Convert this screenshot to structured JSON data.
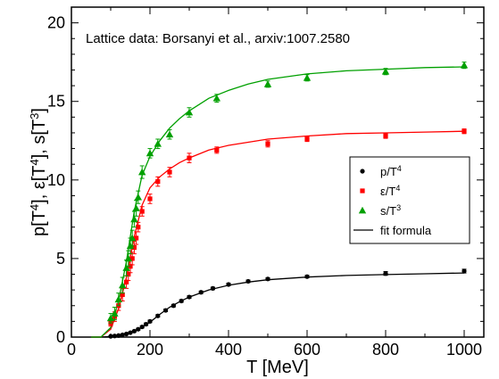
{
  "chart_data": {
    "type": "scatter",
    "annotation": "Lattice data: Borsanyi  et al., arxiv:1007.2580",
    "xlabel": "T [MeV]",
    "ylabel": "p[T4],  ε[T4], s[T3]",
    "xlim": [
      0,
      1050
    ],
    "ylim": [
      0,
      21
    ],
    "xticks": [
      0,
      200,
      400,
      600,
      800,
      1000
    ],
    "yticks": [
      0,
      5,
      10,
      15,
      20
    ],
    "x_minor_step": 100,
    "y_minor_step": 1,
    "grid": false,
    "legend_position": "center-right",
    "legend": [
      {
        "key": "p",
        "label": "p/T4"
      },
      {
        "key": "e",
        "label": "ε/T4"
      },
      {
        "key": "s",
        "label": "s/T3"
      },
      {
        "key": "fit",
        "label": "fit formula"
      }
    ],
    "series": [
      {
        "key": "p",
        "name": "p/T4",
        "marker": "circle",
        "color": "#000000",
        "x": [
          100,
          110,
          120,
          130,
          140,
          150,
          160,
          170,
          180,
          190,
          200,
          220,
          240,
          260,
          280,
          300,
          330,
          360,
          400,
          450,
          500,
          600,
          800,
          1000
        ],
        "y": [
          0.05,
          0.07,
          0.1,
          0.14,
          0.2,
          0.28,
          0.38,
          0.5,
          0.65,
          0.82,
          1.0,
          1.35,
          1.7,
          2.0,
          2.3,
          2.55,
          2.85,
          3.1,
          3.35,
          3.55,
          3.7,
          3.85,
          4.05,
          4.2
        ],
        "err": [
          0.02,
          0.02,
          0.02,
          0.03,
          0.03,
          0.04,
          0.05,
          0.06,
          0.07,
          0.08,
          0.08,
          0.08,
          0.08,
          0.08,
          0.08,
          0.08,
          0.08,
          0.08,
          0.08,
          0.08,
          0.08,
          0.08,
          0.12,
          0.12
        ]
      },
      {
        "key": "e",
        "name": "ε/T4",
        "marker": "square",
        "color": "#ff0000",
        "x": [
          100,
          110,
          120,
          130,
          140,
          145,
          150,
          155,
          160,
          165,
          170,
          180,
          200,
          220,
          250,
          300,
          370,
          500,
          600,
          800,
          1000
        ],
        "y": [
          0.9,
          1.3,
          2.0,
          2.7,
          3.5,
          4.0,
          4.5,
          5.0,
          5.7,
          6.3,
          7.0,
          8.0,
          8.8,
          9.9,
          10.5,
          11.4,
          11.9,
          12.3,
          12.6,
          12.8,
          13.1
        ],
        "err": [
          0.2,
          0.3,
          0.3,
          0.4,
          0.4,
          0.4,
          0.4,
          0.4,
          0.4,
          0.4,
          0.3,
          0.3,
          0.3,
          0.3,
          0.3,
          0.3,
          0.2,
          0.2,
          0.15,
          0.15,
          0.15
        ]
      },
      {
        "key": "s",
        "name": "s/T3",
        "marker": "triangle",
        "color": "#00a000",
        "x": [
          100,
          110,
          120,
          130,
          140,
          145,
          150,
          155,
          160,
          165,
          170,
          180,
          200,
          220,
          250,
          300,
          370,
          500,
          600,
          800,
          1000
        ],
        "y": [
          1.2,
          1.5,
          2.4,
          3.3,
          4.4,
          5.0,
          5.8,
          6.3,
          7.5,
          8.2,
          8.9,
          10.5,
          11.7,
          12.3,
          12.9,
          14.3,
          15.2,
          16.1,
          16.5,
          16.9,
          17.3
        ],
        "err": [
          0.3,
          0.4,
          0.4,
          0.5,
          0.5,
          0.5,
          0.5,
          0.5,
          0.5,
          0.5,
          0.4,
          0.4,
          0.3,
          0.3,
          0.3,
          0.3,
          0.25,
          0.2,
          0.2,
          0.2,
          0.2
        ]
      }
    ],
    "fit_curves": [
      {
        "key": "fit-p",
        "color": "#000000",
        "x": [
          50,
          75,
          100,
          125,
          150,
          175,
          200,
          225,
          250,
          275,
          300,
          350,
          400,
          450,
          500,
          600,
          700,
          800,
          900,
          1000
        ],
        "y": [
          0,
          0,
          0.04,
          0.12,
          0.27,
          0.55,
          0.95,
          1.45,
          1.9,
          2.25,
          2.55,
          3.0,
          3.3,
          3.5,
          3.65,
          3.82,
          3.92,
          3.98,
          4.03,
          4.08
        ]
      },
      {
        "key": "fit-e",
        "color": "#ff0000",
        "x": [
          50,
          75,
          100,
          120,
          140,
          160,
          180,
          200,
          225,
          250,
          275,
          300,
          350,
          400,
          450,
          500,
          600,
          700,
          800,
          900,
          1000
        ],
        "y": [
          0,
          0,
          0.5,
          1.8,
          3.8,
          6.4,
          8.4,
          9.5,
          10.2,
          10.7,
          11.1,
          11.4,
          11.9,
          12.2,
          12.4,
          12.6,
          12.8,
          12.95,
          13.0,
          13.05,
          13.1
        ]
      },
      {
        "key": "fit-s",
        "color": "#00a000",
        "x": [
          50,
          75,
          100,
          120,
          140,
          160,
          180,
          200,
          225,
          250,
          275,
          300,
          350,
          400,
          450,
          500,
          600,
          700,
          800,
          900,
          1000
        ],
        "y": [
          0,
          0,
          0.6,
          2.3,
          4.8,
          8.0,
          10.3,
          11.5,
          12.5,
          13.3,
          13.9,
          14.4,
          15.2,
          15.7,
          16.1,
          16.4,
          16.75,
          16.95,
          17.05,
          17.15,
          17.2
        ]
      }
    ]
  }
}
